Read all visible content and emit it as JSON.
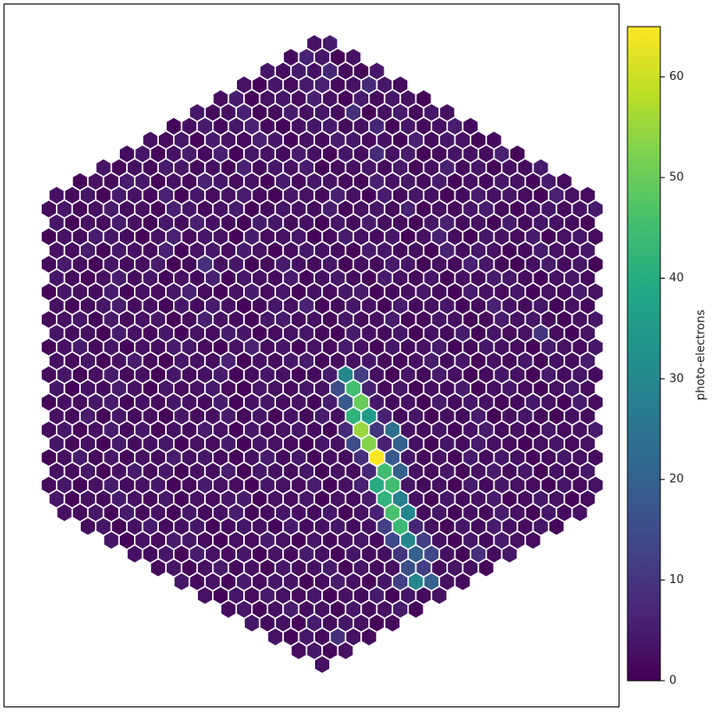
{
  "chart_data": {
    "type": "hexmap",
    "colormap": "viridis",
    "colorbar_label": "photo-electrons",
    "clim": [
      0,
      65
    ],
    "cticks": [
      0,
      10,
      20,
      30,
      40,
      50,
      60
    ],
    "values": [
      [
        3,
        5
      ],
      [
        2,
        6,
        4,
        1,
        3
      ],
      [
        4,
        2,
        5,
        3,
        7,
        2,
        1,
        4
      ],
      [
        3,
        1,
        4,
        2,
        5,
        6,
        2,
        3,
        8,
        4,
        2
      ],
      [
        2,
        5,
        1,
        3,
        4,
        2,
        6,
        3,
        1,
        5,
        2,
        4,
        3,
        1
      ],
      [
        4,
        2,
        3,
        6,
        1,
        2,
        5,
        3,
        4,
        2,
        9,
        1,
        3,
        5,
        2,
        4,
        3
      ],
      [
        1,
        3,
        5,
        2,
        4,
        6,
        2,
        1,
        3,
        4,
        5,
        2,
        3,
        7,
        1,
        4,
        2,
        3,
        5,
        2
      ],
      [
        3,
        2,
        4,
        1,
        5,
        3,
        2,
        6,
        4,
        1,
        3,
        2,
        5,
        4,
        2,
        3,
        1,
        6,
        2,
        4,
        3,
        1,
        2
      ],
      [
        2,
        4,
        1,
        3,
        5,
        2,
        6,
        1,
        4,
        3,
        2,
        5,
        3,
        1,
        4,
        2,
        8,
        3,
        5,
        1,
        2,
        4,
        3,
        2,
        6,
        1
      ],
      [
        4,
        1,
        3,
        2,
        5,
        4,
        2,
        3,
        1,
        6,
        2,
        4,
        3,
        5,
        1,
        2,
        3,
        4,
        2,
        5,
        1,
        3,
        6,
        2,
        4,
        1,
        3,
        2,
        5
      ],
      [
        1,
        3,
        2,
        5,
        4,
        1,
        3,
        2,
        6,
        4,
        2,
        3,
        1,
        5,
        2,
        4,
        3,
        2,
        1,
        6,
        3,
        4,
        2,
        5,
        1,
        3,
        2,
        4,
        3,
        1,
        5,
        2
      ],
      [
        3,
        2,
        4,
        1,
        5,
        3,
        2,
        6,
        1,
        4,
        2,
        3,
        5,
        2,
        1,
        4,
        3,
        2,
        6,
        3,
        1,
        5,
        2,
        4,
        3,
        1,
        2,
        5,
        3,
        4,
        2,
        1,
        6,
        3,
        2
      ],
      [
        2,
        4,
        1,
        3,
        5,
        2,
        3,
        1,
        6,
        4,
        2,
        3,
        5,
        1,
        2,
        4,
        3,
        2,
        5,
        1,
        3,
        4,
        2,
        6,
        1,
        3,
        2,
        4,
        5,
        2,
        1,
        3,
        4,
        2,
        3,
        5
      ],
      [
        4,
        1,
        3,
        2,
        5,
        3,
        1,
        4,
        2,
        6,
        3,
        2,
        1,
        5,
        4,
        2,
        3,
        1,
        4,
        2,
        5,
        3,
        2,
        1,
        4,
        6,
        2,
        3,
        1,
        5,
        2,
        4,
        3,
        2,
        1
      ],
      [
        1,
        3,
        2,
        5,
        4,
        2,
        1,
        3,
        6,
        2,
        4,
        3,
        1,
        5,
        2,
        3,
        4,
        1,
        2,
        5,
        3,
        2,
        4,
        1,
        3,
        6,
        2,
        1,
        4,
        3,
        2,
        5,
        1,
        3,
        4,
        2
      ],
      [
        3,
        2,
        5,
        1,
        4,
        3,
        2,
        6,
        1,
        3,
        4,
        2,
        5,
        3,
        1,
        2,
        4,
        3,
        2,
        1,
        5,
        4,
        2,
        3,
        1,
        6,
        2,
        4,
        3,
        1,
        2,
        5,
        3,
        2,
        4
      ],
      [
        2,
        5,
        3,
        1,
        4,
        2,
        3,
        5,
        1,
        2,
        9,
        3,
        4,
        1,
        2,
        5,
        3,
        2,
        4,
        1,
        3,
        2,
        5,
        4,
        1,
        3,
        2,
        6,
        4,
        2,
        1,
        3,
        5,
        2,
        4,
        1
      ],
      [
        4,
        2,
        1,
        3,
        5,
        2,
        4,
        1,
        3,
        2,
        6,
        1,
        4,
        3,
        2,
        5,
        1,
        3,
        4,
        2,
        1,
        5,
        3,
        2,
        4,
        1,
        3,
        2,
        5,
        4,
        2,
        1,
        3,
        4,
        2
      ],
      [
        1,
        4,
        3,
        2,
        5,
        1,
        3,
        2,
        4,
        6,
        2,
        1,
        3,
        5,
        2,
        4,
        1,
        3,
        2,
        4,
        5,
        1,
        2,
        3,
        4,
        2,
        1,
        5,
        3,
        2,
        4,
        1,
        3,
        2,
        5,
        3
      ],
      [
        3,
        1,
        2,
        4,
        5,
        2,
        3,
        1,
        4,
        2,
        5,
        3,
        1,
        2,
        4,
        3,
        6,
        1,
        2,
        4,
        3,
        1,
        5,
        2,
        3,
        4,
        1,
        2,
        6,
        3,
        2,
        4,
        1,
        3,
        2
      ],
      [
        2,
        3,
        4,
        1,
        5,
        2,
        3,
        4,
        1,
        2,
        6,
        3,
        2,
        1,
        4,
        5,
        2,
        3,
        1,
        4,
        2,
        3,
        5,
        1,
        2,
        4,
        3,
        1,
        2,
        5,
        3,
        4,
        2,
        1,
        3,
        4
      ],
      [
        4,
        2,
        3,
        1,
        5,
        3,
        2,
        4,
        1,
        3,
        2,
        5,
        4,
        1,
        2,
        3,
        4,
        2,
        1,
        5,
        3,
        2,
        4,
        1,
        3,
        2,
        5,
        1,
        4,
        2,
        3,
        10,
        2,
        1,
        3
      ],
      [
        1,
        3,
        5,
        2,
        4,
        1,
        3,
        2,
        5,
        4,
        2,
        1,
        3,
        6,
        2,
        4,
        1,
        3,
        2,
        5,
        3,
        1,
        4,
        2,
        3,
        5,
        1,
        2,
        4,
        3,
        2,
        1,
        5,
        3,
        2,
        4
      ],
      [
        3,
        2,
        4,
        1,
        3,
        5,
        2,
        1,
        4,
        3,
        2,
        6,
        1,
        3,
        2,
        4,
        5,
        1,
        2,
        3,
        4,
        2,
        1,
        3,
        5,
        2,
        4,
        1,
        3,
        2,
        4,
        1,
        3,
        2,
        5
      ],
      [
        2,
        4,
        1,
        3,
        5,
        2,
        3,
        1,
        4,
        2,
        3,
        5,
        1,
        2,
        4,
        3,
        1,
        2,
        5,
        30,
        12,
        3,
        1,
        4,
        2,
        5,
        3,
        1,
        2,
        4,
        3,
        1,
        5,
        2,
        4,
        2
      ],
      [
        4,
        1,
        3,
        2,
        5,
        3,
        1,
        4,
        2,
        3,
        5,
        2,
        1,
        4,
        3,
        2,
        4,
        3,
        15,
        45,
        6,
        2,
        4,
        1,
        3,
        2,
        5,
        1,
        3,
        4,
        2,
        1,
        3,
        5,
        2
      ],
      [
        1,
        3,
        2,
        4,
        5,
        1,
        3,
        2,
        4,
        3,
        2,
        5,
        1,
        3,
        4,
        2,
        3,
        1,
        5,
        18,
        50,
        4,
        2,
        3,
        1,
        5,
        2,
        4,
        3,
        1,
        2,
        4,
        3,
        1,
        5,
        2
      ],
      [
        3,
        2,
        5,
        1,
        4,
        2,
        3,
        1,
        4,
        2,
        3,
        5,
        2,
        4,
        1,
        3,
        2,
        5,
        3,
        42,
        35,
        6,
        2,
        4,
        1,
        3,
        2,
        5,
        1,
        3,
        4,
        2,
        1,
        3,
        2
      ],
      [
        2,
        4,
        1,
        3,
        5,
        2,
        4,
        1,
        3,
        2,
        5,
        3,
        1,
        4,
        2,
        3,
        4,
        2,
        1,
        8,
        55,
        10,
        24,
        3,
        2,
        4,
        1,
        3,
        5,
        2,
        3,
        1,
        4,
        2,
        3,
        5
      ],
      [
        4,
        2,
        3,
        1,
        5,
        2,
        3,
        4,
        1,
        3,
        2,
        5,
        1,
        4,
        3,
        2,
        1,
        4,
        3,
        15,
        53,
        6,
        20,
        3,
        1,
        4,
        2,
        5,
        3,
        2,
        1,
        3,
        4,
        2,
        3
      ],
      [
        1,
        3,
        5,
        2,
        4,
        1,
        3,
        2,
        5,
        3,
        4,
        2,
        1,
        3,
        5,
        2,
        4,
        1,
        3,
        2,
        9,
        65,
        18,
        4,
        2,
        3,
        1,
        5,
        2,
        4,
        3,
        1,
        2,
        4,
        3,
        2
      ],
      [
        3,
        2,
        4,
        1,
        3,
        5,
        2,
        4,
        1,
        3,
        2,
        5,
        1,
        4,
        3,
        2,
        4,
        1,
        3,
        2,
        7,
        45,
        20,
        3,
        2,
        4,
        1,
        3,
        5,
        2,
        4,
        1,
        3,
        2,
        4
      ],
      [
        2,
        4,
        1,
        3,
        5,
        2,
        3,
        4,
        1,
        2,
        5,
        3,
        2,
        1,
        4,
        3,
        2,
        5,
        1,
        3,
        6,
        40,
        45,
        4,
        2,
        3,
        1,
        5,
        2,
        4,
        3,
        2,
        1,
        4,
        2,
        3
      ],
      [
        4,
        1,
        3,
        2,
        5,
        3,
        2,
        4,
        1,
        3,
        2,
        4,
        5,
        1,
        3,
        2,
        4,
        1,
        3,
        2,
        5,
        42,
        28,
        3,
        1,
        4,
        2,
        3,
        5,
        1,
        2,
        4,
        3,
        1,
        2
      ],
      [
        3,
        2,
        4,
        1,
        5,
        2,
        3,
        1,
        4,
        2,
        3,
        5,
        1,
        2,
        4,
        3,
        2,
        4,
        1,
        3,
        6,
        46,
        30,
        2,
        4,
        1,
        3,
        2,
        5,
        3,
        1,
        4,
        2,
        3
      ],
      [
        2,
        4,
        1,
        3,
        5,
        2,
        3,
        4,
        1,
        2,
        4,
        3,
        1,
        5,
        2,
        3,
        4,
        2,
        3,
        12,
        44,
        7,
        3,
        1,
        4,
        2,
        5,
        3,
        2,
        4,
        1
      ],
      [
        4,
        1,
        3,
        2,
        5,
        4,
        2,
        1,
        3,
        2,
        5,
        3,
        1,
        4,
        2,
        3,
        4,
        2,
        14,
        30,
        12,
        3,
        1,
        4,
        2,
        5,
        3,
        2
      ],
      [
        3,
        2,
        4,
        1,
        5,
        3,
        2,
        4,
        1,
        3,
        2,
        5,
        3,
        1,
        4,
        2,
        3,
        10,
        20,
        14,
        3,
        1,
        9,
        2,
        4
      ],
      [
        2,
        4,
        1,
        3,
        5,
        2,
        3,
        1,
        4,
        2,
        3,
        5,
        1,
        4,
        2,
        3,
        16,
        12,
        2,
        4,
        3,
        1
      ],
      [
        4,
        2,
        3,
        1,
        5,
        2,
        4,
        3,
        1,
        2,
        5,
        3,
        1,
        4,
        12,
        30,
        20,
        3,
        2
      ],
      [
        3,
        1,
        4,
        2,
        5,
        3,
        2,
        4,
        1,
        3,
        2,
        5,
        1,
        4,
        2,
        3
      ],
      [
        2,
        4,
        1,
        3,
        5,
        2,
        3,
        1,
        4,
        2,
        3,
        5,
        1
      ],
      [
        4,
        2,
        3,
        1,
        5,
        2,
        4,
        3,
        1,
        2
      ],
      [
        3,
        1,
        4,
        2,
        9,
        3,
        2
      ],
      [
        2,
        4,
        1,
        3
      ],
      [
        3
      ]
    ]
  }
}
